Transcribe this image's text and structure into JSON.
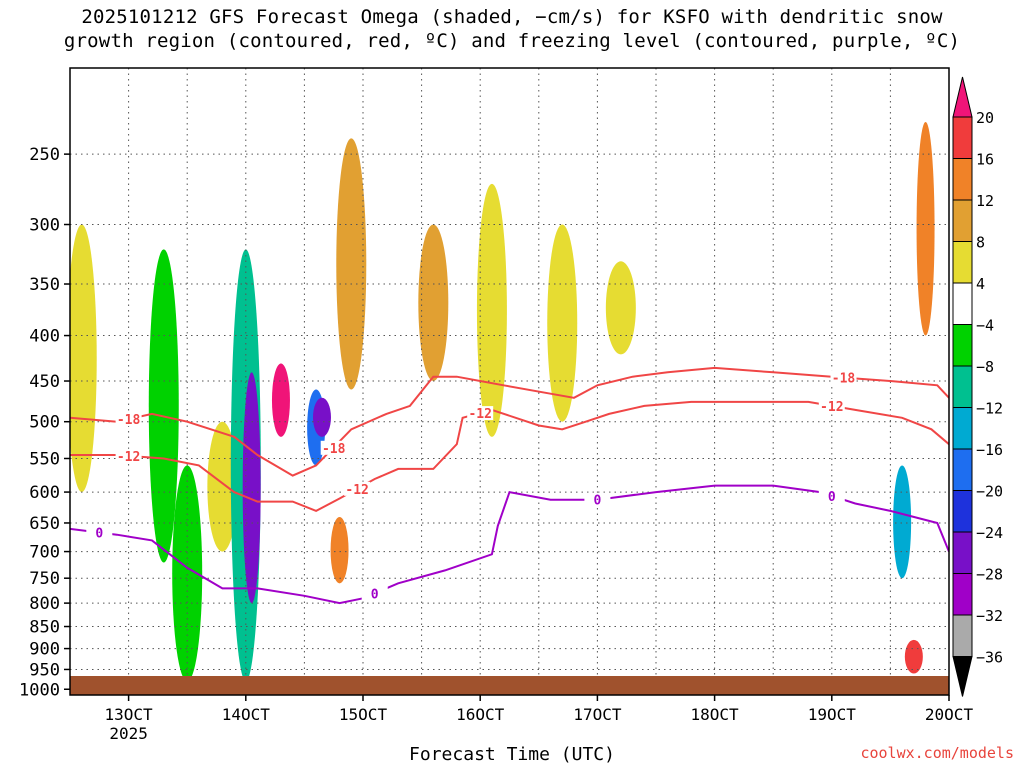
{
  "title_line1": "2025101212 GFS Forecast Omega (shaded, −cm/s) for KSFO with dendritic snow",
  "title_line2": "growth region (contoured, red, ºC) and freezing level (contoured, purple, ºC)",
  "credit": "coolwx.com/models",
  "chart_data": {
    "type": "heatmap",
    "xlabel": "Forecast Time (UTC)",
    "ylabel": "",
    "x_axis": {
      "ticks": [
        "13OCT",
        "14OCT",
        "15OCT",
        "16OCT",
        "17OCT",
        "18OCT",
        "19OCT",
        "20OCT"
      ],
      "tick_days": [
        13,
        14,
        15,
        16,
        17,
        18,
        19,
        20
      ],
      "range_days": [
        12.5,
        20
      ],
      "year_label": "2025"
    },
    "y_axis": {
      "ticks": [
        250,
        300,
        350,
        400,
        450,
        500,
        550,
        600,
        650,
        700,
        750,
        800,
        850,
        900,
        950,
        1000
      ],
      "range_hPa": [
        200,
        1015
      ],
      "log_scale": true,
      "inverted": true
    },
    "grid": true,
    "colorbar": {
      "labels": [
        "20",
        "16",
        "12",
        "8",
        "4",
        "−4",
        "−8",
        "−12",
        "−16",
        "−20",
        "−24",
        "−28",
        "−32",
        "−36"
      ],
      "colors": [
        "#f01478",
        "#f03c3c",
        "#f08228",
        "#e1a032",
        "#e6dc32",
        "#ffffff",
        "#00d200",
        "#00c090",
        "#00aad2",
        "#1e6ef0",
        "#1e32dc",
        "#7810c8",
        "#a000c8",
        "#aaaaaa",
        "#000000"
      ]
    },
    "contours": [
      {
        "label": "-18",
        "color": "#f04646",
        "points": [
          [
            12.5,
            495
          ],
          [
            12.9,
            500
          ],
          [
            13.2,
            490
          ],
          [
            13.5,
            500
          ],
          [
            13.9,
            520
          ],
          [
            14.1,
            545
          ],
          [
            14.4,
            575
          ],
          [
            14.6,
            560
          ],
          [
            14.9,
            510
          ],
          [
            15.2,
            490
          ],
          [
            15.4,
            480
          ],
          [
            15.6,
            445
          ],
          [
            15.8,
            445
          ],
          [
            16.2,
            455
          ],
          [
            16.6,
            465
          ],
          [
            16.8,
            470
          ],
          [
            17.0,
            455
          ],
          [
            17.3,
            445
          ],
          [
            17.6,
            440
          ],
          [
            18.0,
            435
          ],
          [
            18.5,
            440
          ],
          [
            19.0,
            445
          ],
          [
            19.5,
            450
          ],
          [
            19.9,
            455
          ],
          [
            20,
            470
          ]
        ]
      },
      {
        "label": "-12",
        "color": "#f04646",
        "points": [
          [
            12.5,
            545
          ],
          [
            12.9,
            545
          ],
          [
            13.3,
            550
          ],
          [
            13.6,
            560
          ],
          [
            13.9,
            600
          ],
          [
            14.1,
            615
          ],
          [
            14.4,
            615
          ],
          [
            14.6,
            630
          ],
          [
            14.8,
            610
          ],
          [
            15.1,
            580
          ],
          [
            15.3,
            565
          ],
          [
            15.6,
            565
          ],
          [
            15.8,
            530
          ],
          [
            15.85,
            495
          ],
          [
            16.1,
            485
          ],
          [
            16.5,
            505
          ],
          [
            16.7,
            510
          ],
          [
            16.9,
            500
          ],
          [
            17.1,
            490
          ],
          [
            17.4,
            480
          ],
          [
            17.8,
            475
          ],
          [
            18.3,
            475
          ],
          [
            18.8,
            475
          ],
          [
            19.2,
            485
          ],
          [
            19.6,
            495
          ],
          [
            19.85,
            510
          ],
          [
            20,
            530
          ]
        ]
      },
      {
        "label": "0",
        "color": "#a000c8",
        "points": [
          [
            12.5,
            660
          ],
          [
            12.9,
            670
          ],
          [
            13.2,
            680
          ],
          [
            13.5,
            730
          ],
          [
            13.8,
            770
          ],
          [
            14.1,
            770
          ],
          [
            14.5,
            785
          ],
          [
            14.8,
            800
          ],
          [
            15.0,
            790
          ],
          [
            15.3,
            760
          ],
          [
            15.7,
            735
          ],
          [
            16.1,
            705
          ],
          [
            16.15,
            655
          ],
          [
            16.25,
            600
          ],
          [
            16.6,
            612
          ],
          [
            17.0,
            612
          ],
          [
            17.5,
            600
          ],
          [
            18.0,
            590
          ],
          [
            18.5,
            590
          ],
          [
            18.9,
            600
          ],
          [
            19.2,
            618
          ],
          [
            19.5,
            630
          ],
          [
            19.9,
            650
          ],
          [
            20,
            700
          ]
        ]
      }
    ],
    "omega_regions": [
      {
        "t": 12.6,
        "p": [
          300,
          600
        ],
        "value": 4
      },
      {
        "t": 13.3,
        "p": [
          320,
          720
        ],
        "value": -4
      },
      {
        "t": 13.5,
        "p": [
          560,
          980
        ],
        "value": -4
      },
      {
        "t": 13.8,
        "p": [
          500,
          700
        ],
        "value": 4
      },
      {
        "t": 14.0,
        "p": [
          320,
          980
        ],
        "value": -8
      },
      {
        "t": 14.05,
        "p": [
          440,
          800
        ],
        "value": -24
      },
      {
        "t": 14.3,
        "p": [
          430,
          520
        ],
        "value": 20
      },
      {
        "t": 14.6,
        "p": [
          460,
          560
        ],
        "value": -16
      },
      {
        "t": 14.65,
        "p": [
          470,
          520
        ],
        "value": -24
      },
      {
        "t": 14.8,
        "p": [
          640,
          760
        ],
        "value": 12
      },
      {
        "t": 14.9,
        "p": [
          240,
          460
        ],
        "value": 8
      },
      {
        "t": 15.6,
        "p": [
          300,
          450
        ],
        "value": 8
      },
      {
        "t": 16.1,
        "p": [
          270,
          520
        ],
        "value": 4
      },
      {
        "t": 16.7,
        "p": [
          300,
          500
        ],
        "value": 4
      },
      {
        "t": 17.2,
        "p": [
          330,
          420
        ],
        "value": 4
      },
      {
        "t": 19.6,
        "p": [
          560,
          750
        ],
        "value": -12
      },
      {
        "t": 19.7,
        "p": [
          880,
          960
        ],
        "value": 16
      },
      {
        "t": 19.8,
        "p": [
          230,
          400
        ],
        "value": 12
      }
    ]
  }
}
